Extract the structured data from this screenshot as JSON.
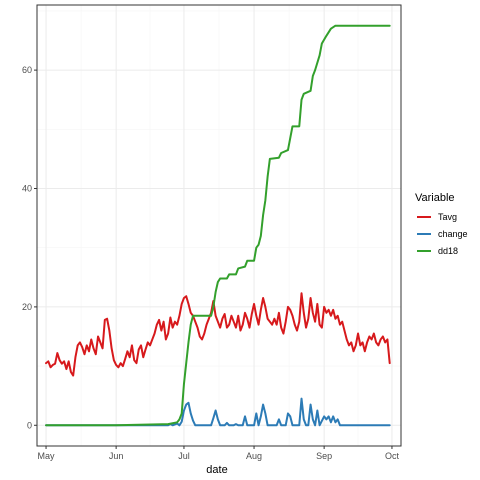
{
  "chart_data": {
    "type": "line",
    "title": "",
    "xlabel": "date",
    "ylabel": "",
    "x_range": [
      "2021-04-27",
      "2021-10-05"
    ],
    "ylim": [
      -3.5,
      71
    ],
    "grid": true,
    "legend_position": "right",
    "legend_title": "Variable",
    "x_ticks": [
      {
        "date": "2021-05-01",
        "label": "May"
      },
      {
        "date": "2021-06-01",
        "label": "Jun"
      },
      {
        "date": "2021-07-01",
        "label": "Jul"
      },
      {
        "date": "2021-08-01",
        "label": "Aug"
      },
      {
        "date": "2021-09-01",
        "label": "Sep"
      },
      {
        "date": "2021-10-01",
        "label": "Oct"
      }
    ],
    "y_ticks": [
      0,
      20,
      40,
      60
    ],
    "series": [
      {
        "name": "Tavg",
        "color": "#d7191c",
        "points": [
          [
            "2021-05-01",
            10.5
          ],
          [
            "2021-05-02",
            10.8
          ],
          [
            "2021-05-03",
            9.8
          ],
          [
            "2021-05-04",
            10.2
          ],
          [
            "2021-05-05",
            10.4
          ],
          [
            "2021-05-06",
            12.2
          ],
          [
            "2021-05-07",
            11.0
          ],
          [
            "2021-05-08",
            10.4
          ],
          [
            "2021-05-09",
            10.8
          ],
          [
            "2021-05-10",
            9.5
          ],
          [
            "2021-05-11",
            10.8
          ],
          [
            "2021-05-12",
            9.0
          ],
          [
            "2021-05-13",
            8.4
          ],
          [
            "2021-05-14",
            11.5
          ],
          [
            "2021-05-15",
            13.5
          ],
          [
            "2021-05-16",
            14.0
          ],
          [
            "2021-05-17",
            13.2
          ],
          [
            "2021-05-18",
            12.0
          ],
          [
            "2021-05-19",
            13.5
          ],
          [
            "2021-05-20",
            12.5
          ],
          [
            "2021-05-21",
            14.5
          ],
          [
            "2021-05-22",
            13.0
          ],
          [
            "2021-05-23",
            12.0
          ],
          [
            "2021-05-24",
            15.0
          ],
          [
            "2021-05-25",
            14.0
          ],
          [
            "2021-05-26",
            13.0
          ],
          [
            "2021-05-27",
            17.8
          ],
          [
            "2021-05-28",
            18.0
          ],
          [
            "2021-05-29",
            16.0
          ],
          [
            "2021-05-30",
            13.0
          ],
          [
            "2021-05-31",
            11.0
          ],
          [
            "2021-06-01",
            10.2
          ],
          [
            "2021-06-02",
            9.8
          ],
          [
            "2021-06-03",
            10.5
          ],
          [
            "2021-06-04",
            10.0
          ],
          [
            "2021-06-05",
            11.2
          ],
          [
            "2021-06-06",
            12.5
          ],
          [
            "2021-06-07",
            11.5
          ],
          [
            "2021-06-08",
            13.5
          ],
          [
            "2021-06-09",
            11.0
          ],
          [
            "2021-06-10",
            10.5
          ],
          [
            "2021-06-11",
            12.8
          ],
          [
            "2021-06-12",
            13.5
          ],
          [
            "2021-06-13",
            11.5
          ],
          [
            "2021-06-14",
            12.8
          ],
          [
            "2021-06-15",
            14.0
          ],
          [
            "2021-06-16",
            13.5
          ],
          [
            "2021-06-17",
            14.5
          ],
          [
            "2021-06-18",
            15.5
          ],
          [
            "2021-06-19",
            17.0
          ],
          [
            "2021-06-20",
            17.8
          ],
          [
            "2021-06-21",
            16.0
          ],
          [
            "2021-06-22",
            17.5
          ],
          [
            "2021-06-23",
            14.5
          ],
          [
            "2021-06-24",
            15.5
          ],
          [
            "2021-06-25",
            18.2
          ],
          [
            "2021-06-26",
            16.5
          ],
          [
            "2021-06-27",
            17.5
          ],
          [
            "2021-06-28",
            17.0
          ],
          [
            "2021-06-29",
            18.5
          ],
          [
            "2021-06-30",
            20.5
          ],
          [
            "2021-07-01",
            21.5
          ],
          [
            "2021-07-02",
            21.8
          ],
          [
            "2021-07-03",
            20.5
          ],
          [
            "2021-07-04",
            19.0
          ],
          [
            "2021-07-05",
            18.5
          ],
          [
            "2021-07-06",
            17.5
          ],
          [
            "2021-07-07",
            16.5
          ],
          [
            "2021-07-08",
            15.0
          ],
          [
            "2021-07-09",
            14.5
          ],
          [
            "2021-07-10",
            15.5
          ],
          [
            "2021-07-11",
            17.0
          ],
          [
            "2021-07-12",
            18.0
          ],
          [
            "2021-07-13",
            19.0
          ],
          [
            "2021-07-14",
            21.0
          ],
          [
            "2021-07-15",
            18.5
          ],
          [
            "2021-07-16",
            17.5
          ],
          [
            "2021-07-17",
            16.5
          ],
          [
            "2021-07-18",
            18.0
          ],
          [
            "2021-07-19",
            18.8
          ],
          [
            "2021-07-20",
            16.5
          ],
          [
            "2021-07-21",
            17.0
          ],
          [
            "2021-07-22",
            18.5
          ],
          [
            "2021-07-23",
            17.5
          ],
          [
            "2021-07-24",
            16.5
          ],
          [
            "2021-07-25",
            18.5
          ],
          [
            "2021-07-26",
            16.0
          ],
          [
            "2021-07-27",
            17.0
          ],
          [
            "2021-07-28",
            19.0
          ],
          [
            "2021-07-29",
            18.0
          ],
          [
            "2021-07-30",
            16.5
          ],
          [
            "2021-07-31",
            18.8
          ],
          [
            "2021-08-01",
            20.5
          ],
          [
            "2021-08-02",
            18.5
          ],
          [
            "2021-08-03",
            17.0
          ],
          [
            "2021-08-04",
            19.5
          ],
          [
            "2021-08-05",
            21.5
          ],
          [
            "2021-08-06",
            20.0
          ],
          [
            "2021-08-07",
            18.0
          ],
          [
            "2021-08-08",
            17.5
          ],
          [
            "2021-08-09",
            17.0
          ],
          [
            "2021-08-10",
            18.0
          ],
          [
            "2021-08-11",
            17.0
          ],
          [
            "2021-08-12",
            19.0
          ],
          [
            "2021-08-13",
            16.5
          ],
          [
            "2021-08-14",
            15.5
          ],
          [
            "2021-08-15",
            17.5
          ],
          [
            "2021-08-16",
            20.0
          ],
          [
            "2021-08-17",
            19.5
          ],
          [
            "2021-08-18",
            18.5
          ],
          [
            "2021-08-19",
            17.0
          ],
          [
            "2021-08-20",
            16.0
          ],
          [
            "2021-08-21",
            17.5
          ],
          [
            "2021-08-22",
            22.3
          ],
          [
            "2021-08-23",
            19.0
          ],
          [
            "2021-08-24",
            16.5
          ],
          [
            "2021-08-25",
            18.0
          ],
          [
            "2021-08-26",
            21.5
          ],
          [
            "2021-08-27",
            19.0
          ],
          [
            "2021-08-28",
            17.5
          ],
          [
            "2021-08-29",
            20.5
          ],
          [
            "2021-08-30",
            17.0
          ],
          [
            "2021-08-31",
            16.5
          ],
          [
            "2021-09-01",
            20.0
          ],
          [
            "2021-09-02",
            19.0
          ],
          [
            "2021-09-03",
            19.5
          ],
          [
            "2021-09-04",
            18.5
          ],
          [
            "2021-09-05",
            19.5
          ],
          [
            "2021-09-06",
            18.0
          ],
          [
            "2021-09-07",
            18.5
          ],
          [
            "2021-09-08",
            17.0
          ],
          [
            "2021-09-09",
            17.5
          ],
          [
            "2021-09-10",
            16.0
          ],
          [
            "2021-09-11",
            14.5
          ],
          [
            "2021-09-12",
            13.5
          ],
          [
            "2021-09-13",
            14.0
          ],
          [
            "2021-09-14",
            12.5
          ],
          [
            "2021-09-15",
            13.5
          ],
          [
            "2021-09-16",
            15.5
          ],
          [
            "2021-09-17",
            13.5
          ],
          [
            "2021-09-18",
            14.0
          ],
          [
            "2021-09-19",
            12.5
          ],
          [
            "2021-09-20",
            14.0
          ],
          [
            "2021-09-21",
            15.0
          ],
          [
            "2021-09-22",
            14.5
          ],
          [
            "2021-09-23",
            15.5
          ],
          [
            "2021-09-24",
            14.0
          ],
          [
            "2021-09-25",
            13.5
          ],
          [
            "2021-09-26",
            14.5
          ],
          [
            "2021-09-27",
            15.0
          ],
          [
            "2021-09-28",
            14.0
          ],
          [
            "2021-09-29",
            14.5
          ],
          [
            "2021-09-30",
            10.5
          ]
        ]
      },
      {
        "name": "change",
        "color": "#2c7bb6",
        "points": [
          [
            "2021-05-01",
            0
          ],
          [
            "2021-06-01",
            0
          ],
          [
            "2021-06-24",
            0
          ],
          [
            "2021-06-25",
            0.2
          ],
          [
            "2021-06-26",
            0
          ],
          [
            "2021-06-28",
            0.3
          ],
          [
            "2021-06-29",
            0
          ],
          [
            "2021-06-30",
            0.6
          ],
          [
            "2021-07-01",
            2.5
          ],
          [
            "2021-07-02",
            3.5
          ],
          [
            "2021-07-03",
            3.8
          ],
          [
            "2021-07-04",
            2.0
          ],
          [
            "2021-07-05",
            0.8
          ],
          [
            "2021-07-06",
            0
          ],
          [
            "2021-07-13",
            0
          ],
          [
            "2021-07-14",
            1.2
          ],
          [
            "2021-07-15",
            2.5
          ],
          [
            "2021-07-16",
            1.0
          ],
          [
            "2021-07-17",
            0
          ],
          [
            "2021-07-19",
            0
          ],
          [
            "2021-07-20",
            0.4
          ],
          [
            "2021-07-21",
            0
          ],
          [
            "2021-07-23",
            0
          ],
          [
            "2021-07-24",
            0.2
          ],
          [
            "2021-07-25",
            0
          ],
          [
            "2021-07-27",
            0
          ],
          [
            "2021-07-28",
            1.5
          ],
          [
            "2021-07-29",
            0
          ],
          [
            "2021-08-01",
            0
          ],
          [
            "2021-08-02",
            2.0
          ],
          [
            "2021-08-03",
            0
          ],
          [
            "2021-08-04",
            1.5
          ],
          [
            "2021-08-05",
            3.5
          ],
          [
            "2021-08-06",
            2.0
          ],
          [
            "2021-08-07",
            0
          ],
          [
            "2021-08-11",
            0
          ],
          [
            "2021-08-12",
            1.0
          ],
          [
            "2021-08-13",
            0
          ],
          [
            "2021-08-15",
            0
          ],
          [
            "2021-08-16",
            2.0
          ],
          [
            "2021-08-17",
            1.5
          ],
          [
            "2021-08-18",
            0
          ],
          [
            "2021-08-21",
            0
          ],
          [
            "2021-08-22",
            4.5
          ],
          [
            "2021-08-23",
            1.0
          ],
          [
            "2021-08-24",
            0
          ],
          [
            "2021-08-25",
            0
          ],
          [
            "2021-08-26",
            3.5
          ],
          [
            "2021-08-27",
            1.0
          ],
          [
            "2021-08-28",
            0
          ],
          [
            "2021-08-29",
            2.5
          ],
          [
            "2021-08-30",
            0
          ],
          [
            "2021-09-01",
            1.5
          ],
          [
            "2021-09-02",
            1.0
          ],
          [
            "2021-09-03",
            1.5
          ],
          [
            "2021-09-04",
            0.5
          ],
          [
            "2021-09-05",
            1.5
          ],
          [
            "2021-09-06",
            0.5
          ],
          [
            "2021-09-07",
            1.0
          ],
          [
            "2021-09-08",
            0
          ],
          [
            "2021-09-30",
            0
          ]
        ]
      },
      {
        "name": "dd18",
        "color": "#33a02c",
        "points": [
          [
            "2021-05-01",
            0
          ],
          [
            "2021-06-01",
            0
          ],
          [
            "2021-06-24",
            0.2
          ],
          [
            "2021-06-28",
            0.5
          ],
          [
            "2021-06-29",
            1.0
          ],
          [
            "2021-06-30",
            2.0
          ],
          [
            "2021-07-01",
            7.0
          ],
          [
            "2021-07-02",
            10.5
          ],
          [
            "2021-07-03",
            14.0
          ],
          [
            "2021-07-04",
            17.0
          ],
          [
            "2021-07-05",
            18.5
          ],
          [
            "2021-07-13",
            18.5
          ],
          [
            "2021-07-14",
            20.0
          ],
          [
            "2021-07-15",
            22.5
          ],
          [
            "2021-07-16",
            24.2
          ],
          [
            "2021-07-17",
            24.8
          ],
          [
            "2021-07-20",
            24.8
          ],
          [
            "2021-07-21",
            25.5
          ],
          [
            "2021-07-24",
            25.5
          ],
          [
            "2021-07-25",
            26.5
          ],
          [
            "2021-07-28",
            26.8
          ],
          [
            "2021-07-29",
            27.8
          ],
          [
            "2021-08-01",
            27.8
          ],
          [
            "2021-08-02",
            30.0
          ],
          [
            "2021-08-03",
            30.5
          ],
          [
            "2021-08-04",
            32.0
          ],
          [
            "2021-08-05",
            35.5
          ],
          [
            "2021-08-06",
            38.0
          ],
          [
            "2021-08-07",
            42.0
          ],
          [
            "2021-08-08",
            45.0
          ],
          [
            "2021-08-12",
            45.2
          ],
          [
            "2021-08-13",
            46.0
          ],
          [
            "2021-08-16",
            46.5
          ],
          [
            "2021-08-17",
            48.5
          ],
          [
            "2021-08-18",
            50.5
          ],
          [
            "2021-08-21",
            50.5
          ],
          [
            "2021-08-22",
            55.0
          ],
          [
            "2021-08-23",
            56.0
          ],
          [
            "2021-08-26",
            56.5
          ],
          [
            "2021-08-27",
            59.0
          ],
          [
            "2021-08-28",
            60.0
          ],
          [
            "2021-08-30",
            62.5
          ],
          [
            "2021-08-31",
            64.5
          ],
          [
            "2021-09-02",
            65.8
          ],
          [
            "2021-09-04",
            67.0
          ],
          [
            "2021-09-06",
            67.5
          ],
          [
            "2021-09-30",
            67.5
          ]
        ]
      }
    ]
  }
}
